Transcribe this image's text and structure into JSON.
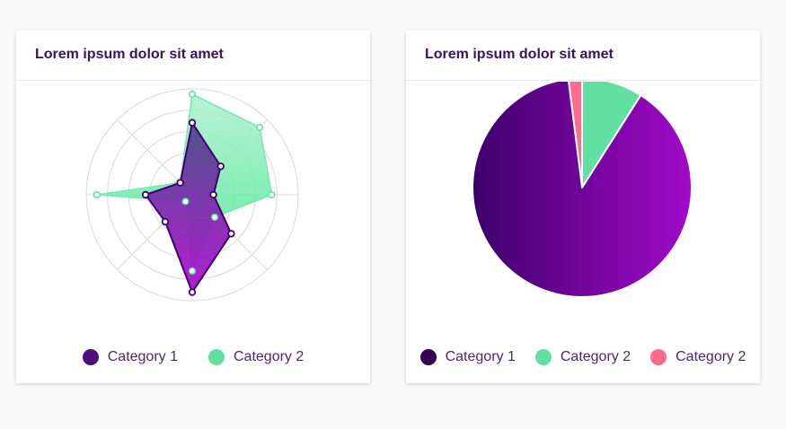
{
  "colors": {
    "purple_dark": "#3f006e",
    "purple": "#7a0aa5",
    "purple_light": "#a010c8",
    "green": "#5fe0a0",
    "green_light": "#aef0cf",
    "pink": "#ff6b8d"
  },
  "cards": [
    {
      "title": "Lorem ipsum dolor sit amet",
      "legend": [
        {
          "label": "Category 1",
          "color": "#4b0f7d"
        },
        {
          "label": "Category 2",
          "color": "#62e0a3"
        }
      ]
    },
    {
      "title": "Lorem ipsum dolor sit amet",
      "legend": [
        {
          "label": "Category 1",
          "color": "#35004f"
        },
        {
          "label": "Category 2",
          "color": "#62e0a3"
        },
        {
          "label": "Category 2",
          "color": "#ff6b8d"
        }
      ]
    }
  ],
  "chart_data": [
    {
      "type": "radar",
      "max": 1,
      "rings": 5,
      "grid": true,
      "legend_position": "bottom",
      "axes_count": 8,
      "series": [
        {
          "name": "Category 1",
          "values": [
            0.68,
            0.38,
            0.2,
            0.52,
            0.92,
            0.36,
            0.44,
            0.16
          ]
        },
        {
          "name": "Category 2",
          "values": [
            0.95,
            0.9,
            0.75,
            0.3,
            0.72,
            0.09,
            0.9,
            0.16
          ]
        }
      ]
    },
    {
      "type": "pie",
      "legend_position": "bottom",
      "slices": [
        {
          "label": "Category 2",
          "value": 2
        },
        {
          "label": "Category 2",
          "value": 9
        },
        {
          "label": "Category 1",
          "value": 89
        }
      ]
    }
  ]
}
